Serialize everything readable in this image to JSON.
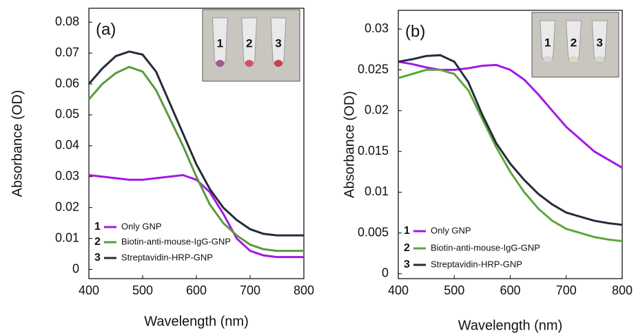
{
  "chart_data": [
    {
      "type": "line",
      "panel_label": "(a)",
      "xlabel": "Wavelength (nm)",
      "ylabel": "Absorbance (OD)",
      "x": [
        400,
        425,
        450,
        475,
        500,
        525,
        550,
        575,
        600,
        625,
        650,
        675,
        700,
        725,
        750,
        775,
        800
      ],
      "xlim": [
        400,
        800
      ],
      "xticks": [
        400,
        500,
        600,
        700,
        800
      ],
      "ylim": [
        -0.003,
        0.0845
      ],
      "yticks": [
        0,
        0.01,
        0.02,
        0.03,
        0.04,
        0.05,
        0.06,
        0.07,
        0.08
      ],
      "legend": "lower left",
      "inset_labels": [
        "1",
        "2",
        "3"
      ],
      "series": [
        {
          "number": "1",
          "name": "Only GNP",
          "color": "#a416e8",
          "values": [
            0.0305,
            0.03,
            0.0295,
            0.029,
            0.029,
            0.0295,
            0.03,
            0.0305,
            0.029,
            0.025,
            0.018,
            0.01,
            0.006,
            0.0045,
            0.004,
            0.004,
            0.004
          ]
        },
        {
          "number": "2",
          "name": "Biotin-anti-mouse-IgG-GNP",
          "color": "#5a9a3c",
          "values": [
            0.055,
            0.06,
            0.0635,
            0.0655,
            0.064,
            0.058,
            0.049,
            0.04,
            0.03,
            0.021,
            0.015,
            0.011,
            0.008,
            0.0065,
            0.006,
            0.006,
            0.006
          ]
        },
        {
          "number": "3",
          "name": "Streptavidin-HRP-GNP",
          "color": "#262b3a",
          "values": [
            0.06,
            0.065,
            0.069,
            0.0705,
            0.0695,
            0.064,
            0.054,
            0.044,
            0.034,
            0.026,
            0.02,
            0.016,
            0.013,
            0.0115,
            0.011,
            0.011,
            0.011
          ]
        }
      ]
    },
    {
      "type": "line",
      "panel_label": "(b)",
      "xlabel": "Wavelength (nm)",
      "ylabel": "Absorbance (OD)",
      "x": [
        400,
        425,
        450,
        475,
        500,
        525,
        550,
        575,
        600,
        625,
        650,
        675,
        700,
        725,
        750,
        775,
        800
      ],
      "xlim": [
        400,
        800
      ],
      "xticks": [
        400,
        500,
        600,
        700,
        800
      ],
      "ylim": [
        -0.0006,
        0.0323
      ],
      "yticks": [
        0,
        0.005,
        0.01,
        0.015,
        0.02,
        0.025,
        0.03
      ],
      "legend": "lower left",
      "inset_labels": [
        "1",
        "2",
        "3"
      ],
      "series": [
        {
          "number": "1",
          "name": "Only GNP",
          "color": "#a416e8",
          "values": [
            0.026,
            0.0257,
            0.0253,
            0.025,
            0.025,
            0.0252,
            0.0255,
            0.0256,
            0.025,
            0.0238,
            0.022,
            0.02,
            0.018,
            0.0165,
            0.015,
            0.014,
            0.013
          ]
        },
        {
          "number": "2",
          "name": "Biotin-anti-mouse-IgG-GNP",
          "color": "#5aa83c",
          "values": [
            0.024,
            0.0245,
            0.025,
            0.025,
            0.0245,
            0.0225,
            0.019,
            0.0155,
            0.0125,
            0.01,
            0.008,
            0.0065,
            0.0055,
            0.005,
            0.0045,
            0.0042,
            0.004
          ]
        },
        {
          "number": "3",
          "name": "Streptavidin-HRP-GNP",
          "color": "#262b3a",
          "values": [
            0.026,
            0.0263,
            0.0267,
            0.0268,
            0.026,
            0.0235,
            0.0195,
            0.016,
            0.0135,
            0.0115,
            0.0098,
            0.0085,
            0.0075,
            0.007,
            0.0065,
            0.0062,
            0.006
          ]
        }
      ]
    }
  ]
}
